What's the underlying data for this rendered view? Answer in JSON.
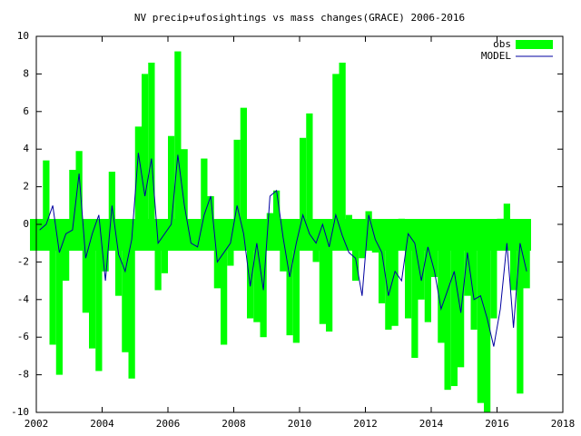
{
  "chart_data": {
    "type": "bar_line",
    "title": "NV precip+ufosightings vs mass changes(GRACE) 2006-2016",
    "x": [
      2002,
      2002.2,
      2002.4,
      2002.6,
      2002.8,
      2003,
      2003.2,
      2003.4,
      2003.6,
      2003.8,
      2004,
      2004.2,
      2004.4,
      2004.6,
      2004.8,
      2005,
      2005.2,
      2005.4,
      2005.6,
      2005.8,
      2006,
      2006.2,
      2006.4,
      2006.6,
      2006.8,
      2007,
      2007.2,
      2007.4,
      2007.6,
      2007.8,
      2008,
      2008.2,
      2008.4,
      2008.6,
      2008.8,
      2009,
      2009.2,
      2009.4,
      2009.6,
      2009.8,
      2010,
      2010.2,
      2010.4,
      2010.6,
      2010.8,
      2011,
      2011.2,
      2011.4,
      2011.6,
      2011.8,
      2012,
      2012.2,
      2012.4,
      2012.6,
      2012.8,
      2013,
      2013.2,
      2013.4,
      2013.6,
      2013.8,
      2014,
      2014.2,
      2014.4,
      2014.6,
      2014.8,
      2015,
      2015.2,
      2015.4,
      2015.6,
      2015.8,
      2016,
      2016.2,
      2016.4,
      2016.6,
      2016.8
    ],
    "series": [
      {
        "name": "obs",
        "color": "#00ff00",
        "values": [
          -1.3,
          3.4,
          -6.4,
          -8.0,
          -3.0,
          2.9,
          3.9,
          -4.7,
          -6.6,
          -7.8,
          -2.5,
          2.8,
          -3.8,
          -6.8,
          -8.2,
          5.2,
          8.0,
          8.6,
          -3.5,
          -2.6,
          4.7,
          9.2,
          4.0,
          -1.0,
          -0.5,
          3.5,
          1.5,
          -3.4,
          -6.4,
          -2.2,
          4.5,
          6.2,
          -5.0,
          -5.2,
          -6.0,
          0.6,
          1.8,
          -2.5,
          -5.9,
          -6.3,
          4.6,
          5.9,
          -2.0,
          -5.3,
          -5.7,
          8.0,
          8.6,
          0.5,
          -3.0,
          -1.8,
          0.7,
          -1.5,
          -4.2,
          -5.6,
          -5.4,
          0.3,
          -5.0,
          -7.1,
          -4.0,
          -5.2,
          -2.8,
          -6.3,
          -8.8,
          -8.6,
          -7.6,
          -3.8,
          -5.6,
          -9.5,
          -10,
          -5.0,
          0.3,
          1.1,
          -3.5,
          -9.0,
          -3.4
        ]
      },
      {
        "name": "MODEL",
        "color": "#0000a0",
        "values": [
          -0.3,
          0,
          1.0,
          -1.5,
          -0.5,
          -0.3,
          2.7,
          -1.8,
          -0.5,
          0.5,
          -3.0,
          1.0,
          -1.6,
          -2.5,
          -0.8,
          3.8,
          1.5,
          3.5,
          -1.0,
          -0.5,
          0,
          3.7,
          1.0,
          -1.0,
          -1.2,
          0.5,
          1.5,
          -2.0,
          -1.5,
          -1.0,
          1.0,
          -0.5,
          -3.3,
          -1.0,
          -3.5,
          1.5,
          1.8,
          -0.7,
          -2.8,
          -1.0,
          0.5,
          -0.5,
          -1.0,
          0,
          -1.2,
          0.5,
          -0.6,
          -1.5,
          -1.8,
          -3.8,
          0.5,
          -0.8,
          -1.5,
          -3.8,
          -2.5,
          -3.0,
          -0.5,
          -1.0,
          -3.0,
          -1.2,
          -2.5,
          -4.5,
          -3.5,
          -2.5,
          -4.7,
          -1.5,
          -4.0,
          -3.8,
          -5.0,
          -6.5,
          -4.5,
          -1.0,
          -5.5,
          -1.0,
          -2.5
        ]
      }
    ],
    "xlim": [
      2002,
      2018
    ],
    "xticks": [
      2002,
      2004,
      2006,
      2008,
      2010,
      2012,
      2014,
      2016,
      2018
    ],
    "ylim": [
      -10,
      10
    ],
    "yticks": [
      -10,
      -8,
      -6,
      -4,
      -2,
      0,
      2,
      4,
      6,
      8,
      10
    ],
    "legend": "upper right"
  }
}
